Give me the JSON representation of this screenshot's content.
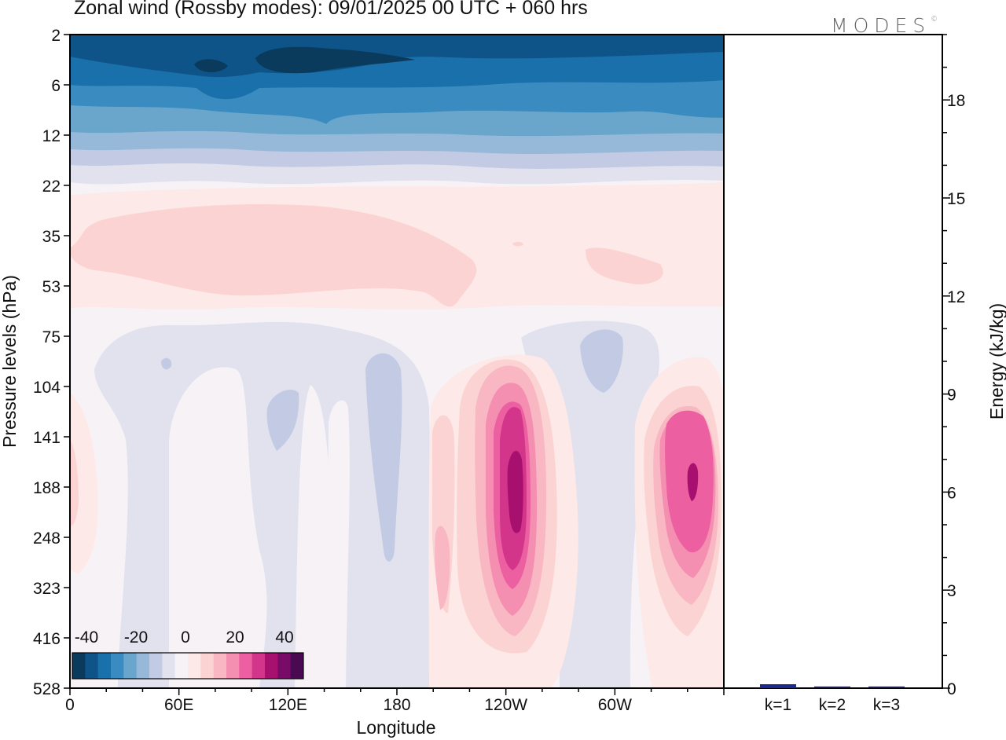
{
  "title": "Zonal wind (Rossby modes):  09/01/2025  00 UTC  + 060 hrs",
  "logo": "MODES",
  "logo_mark": "©",
  "chart_data": [
    {
      "type": "heatmap",
      "title": "Zonal wind (Rossby modes):  09/01/2025  00 UTC  + 060 hrs",
      "xlabel": "Longitude",
      "ylabel": "Pressure levels (hPa)",
      "x_ticks": [
        "0",
        "60E",
        "120E",
        "180",
        "120W",
        "60W"
      ],
      "y_ticks": [
        "2",
        "6",
        "12",
        "22",
        "35",
        "53",
        "75",
        "104",
        "141",
        "188",
        "248",
        "323",
        "416",
        "528"
      ],
      "y_axis_reversed": true,
      "colorbar": {
        "ticks": [
          "-40",
          "-20",
          "0",
          "20",
          "40"
        ],
        "range": [
          -40,
          40
        ],
        "colors": [
          "#0a3a5c",
          "#0e5488",
          "#1a70ab",
          "#3a8cc0",
          "#6aa6cc",
          "#97b9d9",
          "#c2cbe3",
          "#e2e2ef",
          "#f6f2f6",
          "#fde9e7",
          "#fbd3d3",
          "#f8b7c3",
          "#f48fb1",
          "#ec5fa0",
          "#d3358a",
          "#a8106f",
          "#780b68",
          "#4a0a52"
        ]
      }
    },
    {
      "type": "bar",
      "ylabel": "Energy (kJ/kg)",
      "categories": [
        "k=1",
        "k=2",
        "k=3"
      ],
      "values": [
        0.12,
        0.05,
        0.05
      ],
      "ylim": [
        0,
        20
      ],
      "y_ticks": [
        "0",
        "3",
        "6",
        "9",
        "12",
        "15",
        "18"
      ],
      "bar_colors": [
        "#1a2a8c",
        "#1a1a4a",
        "#1a1a4a"
      ]
    }
  ]
}
